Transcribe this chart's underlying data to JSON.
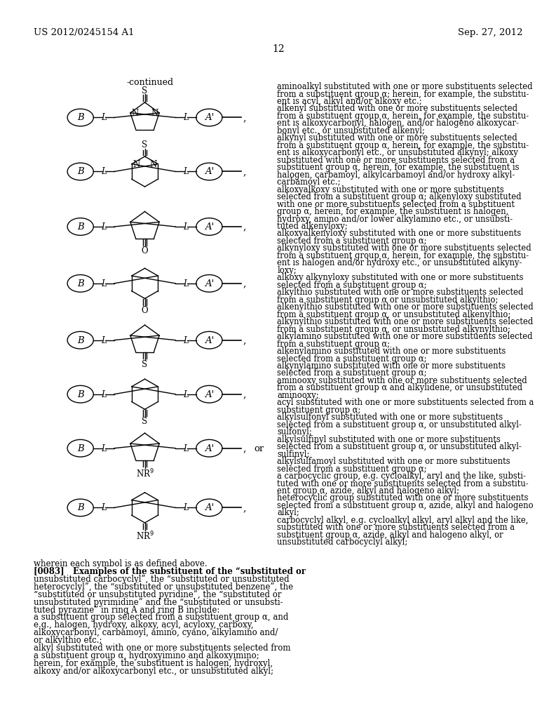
{
  "page_number": "12",
  "header_left": "US 2012/0245154 A1",
  "header_right": "Sep. 27, 2012",
  "background_color": "#ffffff",
  "right_column_text": [
    [
      "aminoalkyl substituted with one or more substituents selected",
      false
    ],
    [
      "from a substituent group α; herein, for example, the substitu-",
      false
    ],
    [
      "ent is acyl, alkyl and/or alkoxy etc.;",
      false
    ],
    [
      "alkenyl substituted with one or more substituents selected",
      false
    ],
    [
      "from a substituent group α, herein, for example, the substitu-",
      false
    ],
    [
      "ent is alkoxycarbonyl, halogen, and/or halogeno alkoxycar-",
      false
    ],
    [
      "bonyl etc., or unsubstituted alkenyl;",
      false
    ],
    [
      "alkynyl substituted with one or more substituents selected",
      false
    ],
    [
      "from a substituent group α, herein, for example, the substitu-",
      false
    ],
    [
      "ent is alkoxycarbonyl etc., or unsubstituted alkynyl; alkoxy",
      false
    ],
    [
      "substituted with one or more substituents selected from a",
      false
    ],
    [
      "substituent group α, herein, for example, the substituent is",
      false
    ],
    [
      "halogen, carbamoyl, alkylcarbamoyl and/or hydroxy alkyl-",
      false
    ],
    [
      "carbamoyl etc.;",
      false
    ],
    [
      "alkoxyalkoxy substituted with one or more substituents",
      false
    ],
    [
      "selected from a substituent group α; alkenyloxy substituted",
      false
    ],
    [
      "with one or more substituents selected from a substituent",
      false
    ],
    [
      "group α, herein, for example, the substituent is halogen,",
      false
    ],
    [
      "hydroxy, amino and/or lower alkylamino etc., or unsubsti-",
      false
    ],
    [
      "tuted alkenyloxy;",
      false
    ],
    [
      "alkoxyalkenyloxy substituted with one or more substituents",
      false
    ],
    [
      "selected from a substituent group α;",
      false
    ],
    [
      "alkynyloxy substituted with one or more substituents selected",
      false
    ],
    [
      "from a substituent group α, herein, for example, the substitu-",
      false
    ],
    [
      "ent is halogen and/or hydroxy etc., or unsubstituted alkyny-",
      false
    ],
    [
      "loxy;",
      false
    ],
    [
      "alkoxy alkynyloxy substituted with one or more substituents",
      false
    ],
    [
      "selected from a substituent group α;",
      false
    ],
    [
      "alkylthio substituted with one or more substituents selected",
      false
    ],
    [
      "from a substituent group α or unsubstituted alkylthio;",
      false
    ],
    [
      "alkenylthio substituted with one or more substituents selected",
      false
    ],
    [
      "from a substituent group α, or unsubstituted alkenylthio;",
      false
    ],
    [
      "alkynylthio substituted with one or more substituents selected",
      false
    ],
    [
      "from a substituent group α, or unsubstituted alkynylthio;",
      false
    ],
    [
      "alkylamino substituted with one or more substituents selected",
      false
    ],
    [
      "from a substituent group α;",
      false
    ],
    [
      "alkenylamino substituted with one or more substituents",
      false
    ],
    [
      "selected from a substituent group α;",
      false
    ],
    [
      "alkynylamino substituted with one or more substituents",
      false
    ],
    [
      "selected from a substituent group α;",
      false
    ],
    [
      "aminooxy substituted with one or more substituents selected",
      false
    ],
    [
      "from a substituent group α and alkylidene, or unsubstituted",
      false
    ],
    [
      "aminooxy;",
      false
    ],
    [
      "acyl substituted with one or more substituents selected from a",
      false
    ],
    [
      "substituent group α;",
      false
    ],
    [
      "alkylsulfonyl substituted with one or more substituents",
      false
    ],
    [
      "selected from a substituent group α, or unsubstituted alkyl-",
      false
    ],
    [
      "sulfonyl;",
      false
    ],
    [
      "alkylsulfinyl substituted with one or more substituents",
      false
    ],
    [
      "selected from a substituent group α, or unsubstituted alkyl-",
      false
    ],
    [
      "sulfinyl;",
      false
    ],
    [
      "alkylsulfamoyl substituted with one or more substituents",
      false
    ],
    [
      "selected from a substituent group α;",
      false
    ],
    [
      "a carbocyclic group, e.g. cycloalkyl, aryl and the like, substi-",
      false
    ],
    [
      "tuted with one or more substituents selected from a substitu-",
      false
    ],
    [
      "ent group α, azide, alkyl and halogeno alkyl;",
      false
    ],
    [
      "heterocyclic group substituted with one or more substituents",
      false
    ],
    [
      "selected from a substituent group α, azide, alkyl and halogeno",
      false
    ],
    [
      "alkyl;",
      false
    ],
    [
      "carbocyclyl alkyl, e.g. cycloalkyl alkyl, aryl alkyl and the like,",
      false
    ],
    [
      "substituted with one or more substituents selected from a",
      false
    ],
    [
      "substituent group α, azide, alkyl and halogeno alkyl, or",
      false
    ],
    [
      "unsubstituted carbocyclyl alkyl;",
      false
    ]
  ],
  "bottom_left_text": [
    [
      "wherein each symbol is as defined above.",
      false
    ],
    [
      "[0083]   Examples of the substituent of the “substituted or",
      true
    ],
    [
      "unsubstituted carbocyclyl”, the “substituted or unsubstituted",
      false
    ],
    [
      "heterocyclyl”, the “substituted or unsubstituted benzene”, the",
      false
    ],
    [
      "“substituted or unsubstituted pyridine”, the “substituted or",
      false
    ],
    [
      "unsubstituted pyrimidine” and the “substituted or unsubsti-",
      false
    ],
    [
      "tuted pyrazine” in ring A and ring B include:",
      false
    ],
    [
      "a substituent group selected from a substituent group α, and",
      false
    ],
    [
      "e.g., halogen, hydroxy, alkoxy, acyl, acyloxy, carboxy,",
      false
    ],
    [
      "alkoxycarbonyl, carbamoyl, amino, cyano, alkylamino and/",
      false
    ],
    [
      "or alkylthio etc.;",
      false
    ],
    [
      "alkyl substituted with one or more substituents selected from",
      false
    ],
    [
      "a substituent group α, hydroxyimino and alkoxyimino;",
      false
    ],
    [
      "herein, for example, the substituent is halogen, hydroxyl,",
      false
    ],
    [
      "alkoxy and/or alkoxycarbonyl etc., or unsubstituted alkyl;",
      false
    ]
  ]
}
